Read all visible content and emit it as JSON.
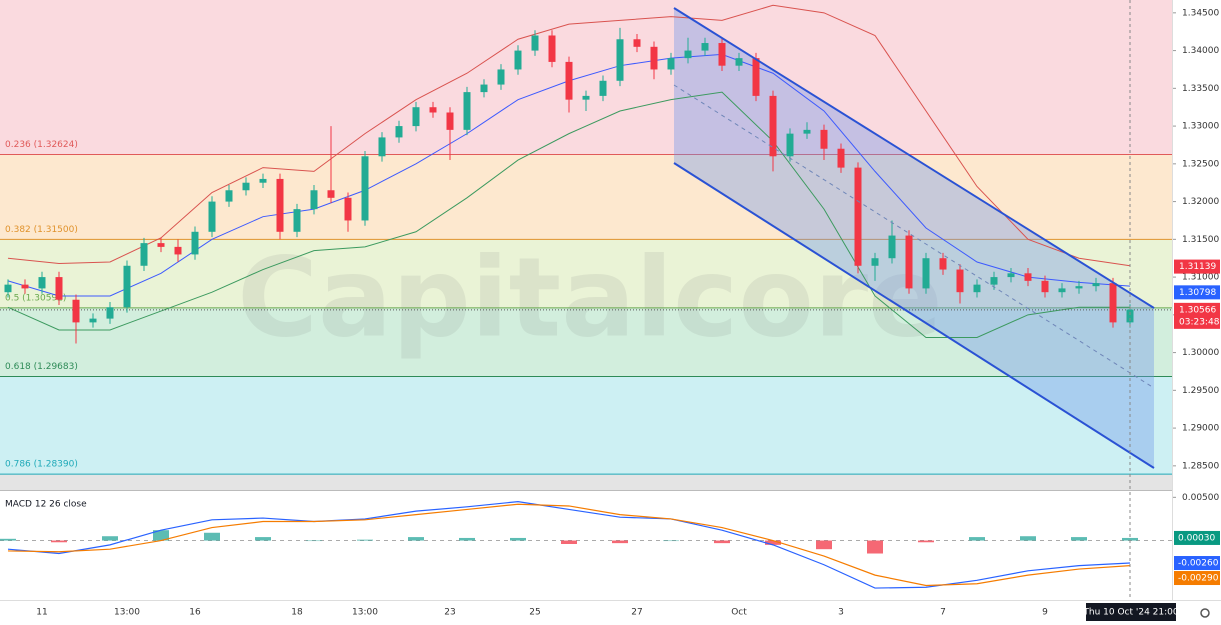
{
  "chart_data": [
    {
      "type": "candlestick",
      "categories": [
        null,
        null,
        "11",
        null,
        null,
        null,
        null,
        "13:00",
        null,
        null,
        null,
        "16",
        null,
        null,
        null,
        null,
        null,
        "18",
        null,
        null,
        null,
        "13:00",
        null,
        null,
        null,
        null,
        "23",
        null,
        null,
        null,
        null,
        "25",
        null,
        null,
        null,
        null,
        null,
        "27",
        null,
        null,
        null,
        null,
        null,
        "Oct",
        null,
        null,
        null,
        null,
        null,
        "3",
        null,
        null,
        null,
        null,
        null,
        "7",
        null,
        null,
        null,
        null,
        null,
        "9",
        null,
        null,
        null,
        null,
        null
      ],
      "open": [
        1.308,
        1.309,
        1.3085,
        1.31,
        1.307,
        1.304,
        1.3045,
        1.306,
        1.3115,
        1.3145,
        1.314,
        1.313,
        1.316,
        1.32,
        1.3215,
        1.3225,
        1.323,
        1.316,
        1.319,
        1.3215,
        1.3205,
        1.3175,
        1.326,
        1.3285,
        1.33,
        1.3325,
        1.3318,
        1.3295,
        1.3345,
        1.3355,
        1.3375,
        1.34,
        1.342,
        1.3385,
        1.3335,
        1.334,
        1.336,
        1.3415,
        1.3405,
        1.3375,
        1.339,
        1.34,
        1.341,
        1.338,
        1.339,
        1.334,
        1.326,
        1.329,
        1.3295,
        1.327,
        1.3245,
        1.3115,
        1.3125,
        1.3155,
        1.3085,
        1.3125,
        1.311,
        1.308,
        1.309,
        1.31,
        1.3105,
        1.3095,
        1.308,
        1.3085,
        1.3088,
        1.3092,
        1.304
      ],
      "high": [
        1.3097,
        1.3097,
        1.3107,
        1.3107,
        1.3077,
        1.3052,
        1.3067,
        1.3122,
        1.3152,
        1.3152,
        1.315,
        1.3167,
        1.3207,
        1.3222,
        1.3232,
        1.3237,
        1.3237,
        1.3197,
        1.3222,
        1.33,
        1.3212,
        1.3267,
        1.3292,
        1.3307,
        1.3332,
        1.3332,
        1.3325,
        1.3352,
        1.3362,
        1.3382,
        1.3407,
        1.3427,
        1.3427,
        1.3392,
        1.3347,
        1.3367,
        1.343,
        1.3422,
        1.3412,
        1.3397,
        1.3417,
        1.3417,
        1.3417,
        1.3397,
        1.3397,
        1.3347,
        1.3297,
        1.3305,
        1.3302,
        1.3277,
        1.3252,
        1.3132,
        1.3175,
        1.3162,
        1.3132,
        1.3132,
        1.3117,
        1.3097,
        1.3107,
        1.3112,
        1.3112,
        1.3102,
        1.3092,
        1.3095,
        1.3099,
        1.3099,
        1.3064
      ],
      "low": [
        1.3073,
        1.3078,
        1.3078,
        1.3063,
        1.3012,
        1.3033,
        1.3038,
        1.3053,
        1.3108,
        1.3133,
        1.312,
        1.3123,
        1.3153,
        1.3193,
        1.3208,
        1.3218,
        1.315,
        1.3153,
        1.3183,
        1.3198,
        1.316,
        1.3168,
        1.3253,
        1.3278,
        1.3293,
        1.3311,
        1.3255,
        1.3288,
        1.3338,
        1.3348,
        1.3368,
        1.3393,
        1.3378,
        1.3318,
        1.332,
        1.3333,
        1.3353,
        1.3398,
        1.3362,
        1.3368,
        1.3383,
        1.3393,
        1.3373,
        1.3373,
        1.3333,
        1.324,
        1.3253,
        1.3283,
        1.3255,
        1.3238,
        1.3105,
        1.3095,
        1.3118,
        1.3078,
        1.3078,
        1.3103,
        1.3065,
        1.3073,
        1.3083,
        1.3093,
        1.3088,
        1.3073,
        1.3073,
        1.3078,
        1.3081,
        1.3033,
        1.3033
      ],
      "close": [
        1.309,
        1.3085,
        1.31,
        1.307,
        1.304,
        1.3045,
        1.306,
        1.3115,
        1.3145,
        1.314,
        1.313,
        1.316,
        1.32,
        1.3215,
        1.3225,
        1.323,
        1.316,
        1.319,
        1.3215,
        1.3205,
        1.3175,
        1.326,
        1.3285,
        1.33,
        1.3325,
        1.3318,
        1.3295,
        1.3345,
        1.3355,
        1.3375,
        1.34,
        1.342,
        1.3385,
        1.3335,
        1.334,
        1.336,
        1.3415,
        1.3405,
        1.3375,
        1.339,
        1.34,
        1.341,
        1.338,
        1.339,
        1.334,
        1.326,
        1.329,
        1.3295,
        1.327,
        1.3245,
        1.3115,
        1.3125,
        1.3155,
        1.3085,
        1.3125,
        1.311,
        1.308,
        1.309,
        1.31,
        1.3105,
        1.3095,
        1.308,
        1.3085,
        1.3088,
        1.3092,
        1.304,
        1.3057
      ],
      "up_color": "#22ab94",
      "down_color": "#f23645",
      "ylim": [
        1.2818,
        1.3467
      ],
      "yticks": [
        {
          "value": 1.345,
          "label": "1.34500"
        },
        {
          "value": 1.34,
          "label": "1.34000"
        },
        {
          "value": 1.335,
          "label": "1.33500"
        },
        {
          "value": 1.33,
          "label": "1.33000"
        },
        {
          "value": 1.325,
          "label": "1.32500"
        },
        {
          "value": 1.32,
          "label": "1.32000"
        },
        {
          "value": 1.315,
          "label": "1.31500"
        },
        {
          "value": 1.31,
          "label": "1.31000"
        },
        {
          "value": 1.305,
          "label": "1.30500"
        },
        {
          "value": 1.3,
          "label": "1.30000"
        },
        {
          "value": 1.295,
          "label": "1.29500"
        },
        {
          "value": 1.29,
          "label": "1.29000"
        },
        {
          "value": 1.285,
          "label": "1.28500"
        }
      ],
      "fib_levels": [
        {
          "value": 1.32624,
          "label": "0.236 (1.32624)",
          "color": "#e05a5a",
          "fill": "#fadadf"
        },
        {
          "value": 1.315,
          "label": "0.382 (1.31500)",
          "color": "#e0922c",
          "fill": "#fde8cf"
        },
        {
          "value": 1.30592,
          "label": "0.5 (1.30592)",
          "color": "#6aa84f",
          "fill": "#eaf3d6"
        },
        {
          "value": 1.29683,
          "label": "0.618 (1.29683)",
          "color": "#2e8b57",
          "fill": "#d2eedd"
        },
        {
          "value": 1.2839,
          "label": "0.786 (1.28390)",
          "color": "#1fa9b8",
          "fill": "#cdf0f3"
        }
      ],
      "fill_below": "#e4e4e4",
      "bollinger": {
        "x": [
          0,
          3,
          6,
          9,
          12,
          15,
          18,
          21,
          24,
          27,
          30,
          33,
          36,
          39,
          42,
          45,
          48,
          51,
          54,
          57,
          60,
          63,
          66
        ],
        "upper": [
          1.3125,
          1.3118,
          1.312,
          1.3152,
          1.3212,
          1.3245,
          1.324,
          1.329,
          1.3335,
          1.337,
          1.3415,
          1.3435,
          1.344,
          1.3445,
          1.344,
          1.346,
          1.345,
          1.342,
          1.332,
          1.322,
          1.315,
          1.3125,
          1.3115
        ],
        "middle": [
          1.3095,
          1.3075,
          1.3075,
          1.3105,
          1.315,
          1.318,
          1.319,
          1.3215,
          1.325,
          1.329,
          1.3335,
          1.336,
          1.338,
          1.339,
          1.3395,
          1.337,
          1.332,
          1.324,
          1.3165,
          1.312,
          1.31,
          1.3093,
          1.3088
        ],
        "lower": [
          1.306,
          1.303,
          1.303,
          1.3055,
          1.308,
          1.311,
          1.3135,
          1.314,
          1.316,
          1.3205,
          1.3255,
          1.329,
          1.332,
          1.3335,
          1.3345,
          1.328,
          1.319,
          1.3075,
          1.302,
          1.302,
          1.305,
          1.306,
          1.306
        ],
        "upper_color": "#d9534f",
        "middle_color": "#3d5afe",
        "lower_color": "#3c9a5f"
      },
      "price_tags": [
        {
          "value": 1.31139,
          "label": "1.31139",
          "color": "#f23645"
        },
        {
          "value": 1.30798,
          "label": "1.30798",
          "color": "#2962ff"
        },
        {
          "value": 1.30566,
          "label": "1.30566",
          "color": "#f23645",
          "countdown": "03:23:48"
        }
      ],
      "cursor_label": "Thu 10 Oct '24  21:00",
      "watermark": "Capitalcore"
    },
    {
      "type": "macd",
      "title": "MACD 12 26 close",
      "x": [
        0,
        3,
        6,
        9,
        12,
        15,
        18,
        21,
        24,
        27,
        30,
        33,
        36,
        39,
        42,
        45,
        48,
        51,
        54,
        57,
        60,
        63,
        66
      ],
      "macd": [
        -0.001,
        -0.0015,
        -0.0005,
        0.0012,
        0.0024,
        0.0026,
        0.0022,
        0.0025,
        0.0034,
        0.0039,
        0.0045,
        0.0036,
        0.0027,
        0.0025,
        0.0012,
        -0.0005,
        -0.0028,
        -0.0055,
        -0.0054,
        -0.0046,
        -0.0035,
        -0.0029,
        -0.0026
      ],
      "signal": [
        -0.0012,
        -0.0013,
        -0.001,
        0.0,
        0.0015,
        0.0022,
        0.0022,
        0.0024,
        0.003,
        0.0036,
        0.0042,
        0.004,
        0.003,
        0.0025,
        0.0015,
        0.0,
        -0.0018,
        -0.004,
        -0.0052,
        -0.005,
        -0.004,
        -0.0033,
        -0.0029
      ],
      "histogram": [
        0.0002,
        -0.0002,
        0.0005,
        0.0012,
        0.0009,
        0.0004,
        0.0,
        0.0001,
        0.0004,
        0.0003,
        0.0003,
        -0.0004,
        -0.0003,
        0.0,
        -0.0003,
        -0.0005,
        -0.001,
        -0.0015,
        -0.0002,
        0.0004,
        0.0005,
        0.0004,
        0.0003
      ],
      "macd_color": "#2962ff",
      "signal_color": "#f57c00",
      "hist_up": "#26a69a",
      "hist_down": "#f23645",
      "ylim": [
        -0.0063,
        0.0055
      ],
      "yticks": [
        {
          "value": 0.005,
          "label": "0.00500"
        }
      ],
      "tags": [
        {
          "value": 0.0003,
          "label": "0.00030",
          "color": "#089981"
        },
        {
          "value": -0.0026,
          "label": "-0.00260",
          "color": "#2962ff"
        },
        {
          "value": -0.0029,
          "label": "-0.00290",
          "color": "#f57c00"
        }
      ]
    }
  ]
}
